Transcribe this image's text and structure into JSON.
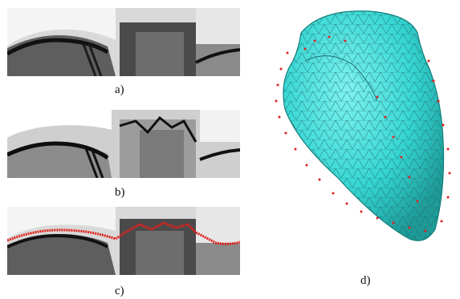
{
  "figure": {
    "panels": [
      {
        "id": "a",
        "caption": "a)",
        "contour": "gray-edge"
      },
      {
        "id": "b",
        "caption": "b)",
        "contour": "black-edge"
      },
      {
        "id": "c",
        "caption": "c)",
        "contour": "red-points"
      }
    ],
    "mesh": {
      "caption": "d)",
      "surface_color": "#35d6d2",
      "wire_color": "#1f6f72",
      "points_color": "#e0201a"
    }
  },
  "colors": {
    "red": "#e0201a",
    "cyan": "#35d6d2",
    "dark": "#1a1a1a"
  }
}
